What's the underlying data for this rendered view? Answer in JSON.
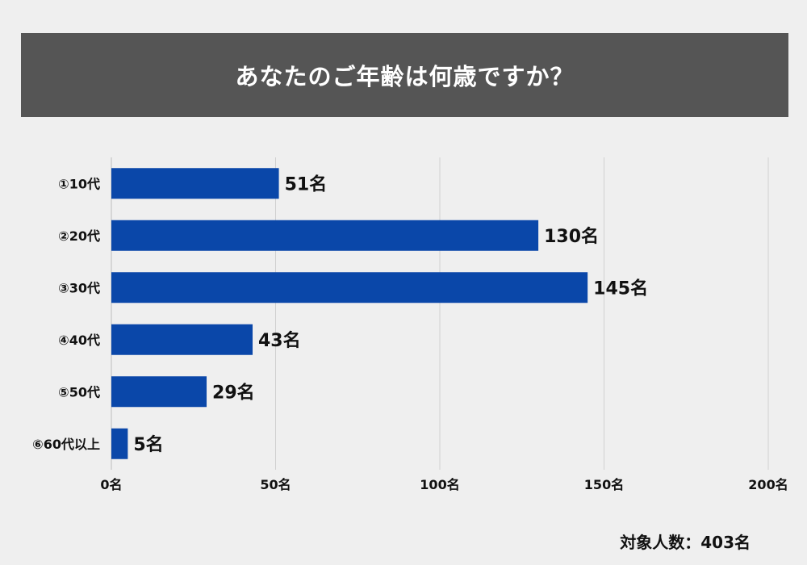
{
  "title": "あなたのご年齢は何歳ですか？",
  "footer": "対象人数：403名",
  "colors": {
    "bar": "#0a47a9",
    "header_bg": "#555555",
    "grid": "#d0d0d0",
    "background": "#efefef"
  },
  "chart_data": {
    "type": "bar",
    "orientation": "horizontal",
    "categories": [
      "①10代",
      "②20代",
      "③30代",
      "④40代",
      "⑤50代",
      "⑥60代以上"
    ],
    "values": [
      51,
      130,
      145,
      43,
      29,
      5
    ],
    "value_labels": [
      "51名",
      "130名",
      "145名",
      "43名",
      "29名",
      "5名"
    ],
    "xlim": [
      0,
      200
    ],
    "x_ticks": [
      0,
      50,
      100,
      150,
      200
    ],
    "x_tick_labels": [
      "0名",
      "50名",
      "100名",
      "150名",
      "200名"
    ],
    "grid": true,
    "legend": "none"
  }
}
